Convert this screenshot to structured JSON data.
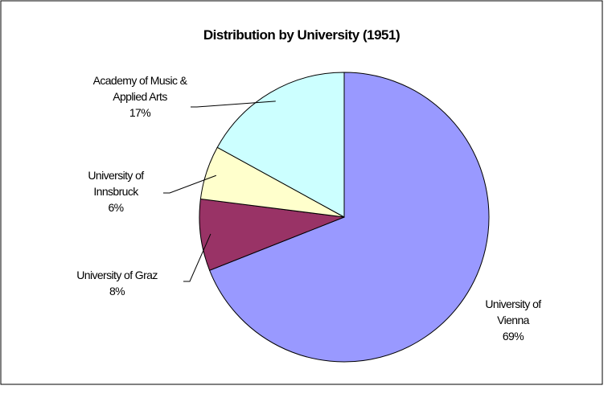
{
  "chart_data": {
    "type": "pie",
    "title": "Distribution by University (1951)",
    "categories": [
      "University of Vienna",
      "University of Graz",
      "University of Innsbruck",
      "Academy of Music & Applied Arts"
    ],
    "values": [
      69,
      8,
      6,
      17
    ],
    "value_labels": [
      "69%",
      "8%",
      "6%",
      "17%"
    ],
    "colors": [
      "#9999ff",
      "#993366",
      "#ffffcc",
      "#ccffff"
    ]
  }
}
